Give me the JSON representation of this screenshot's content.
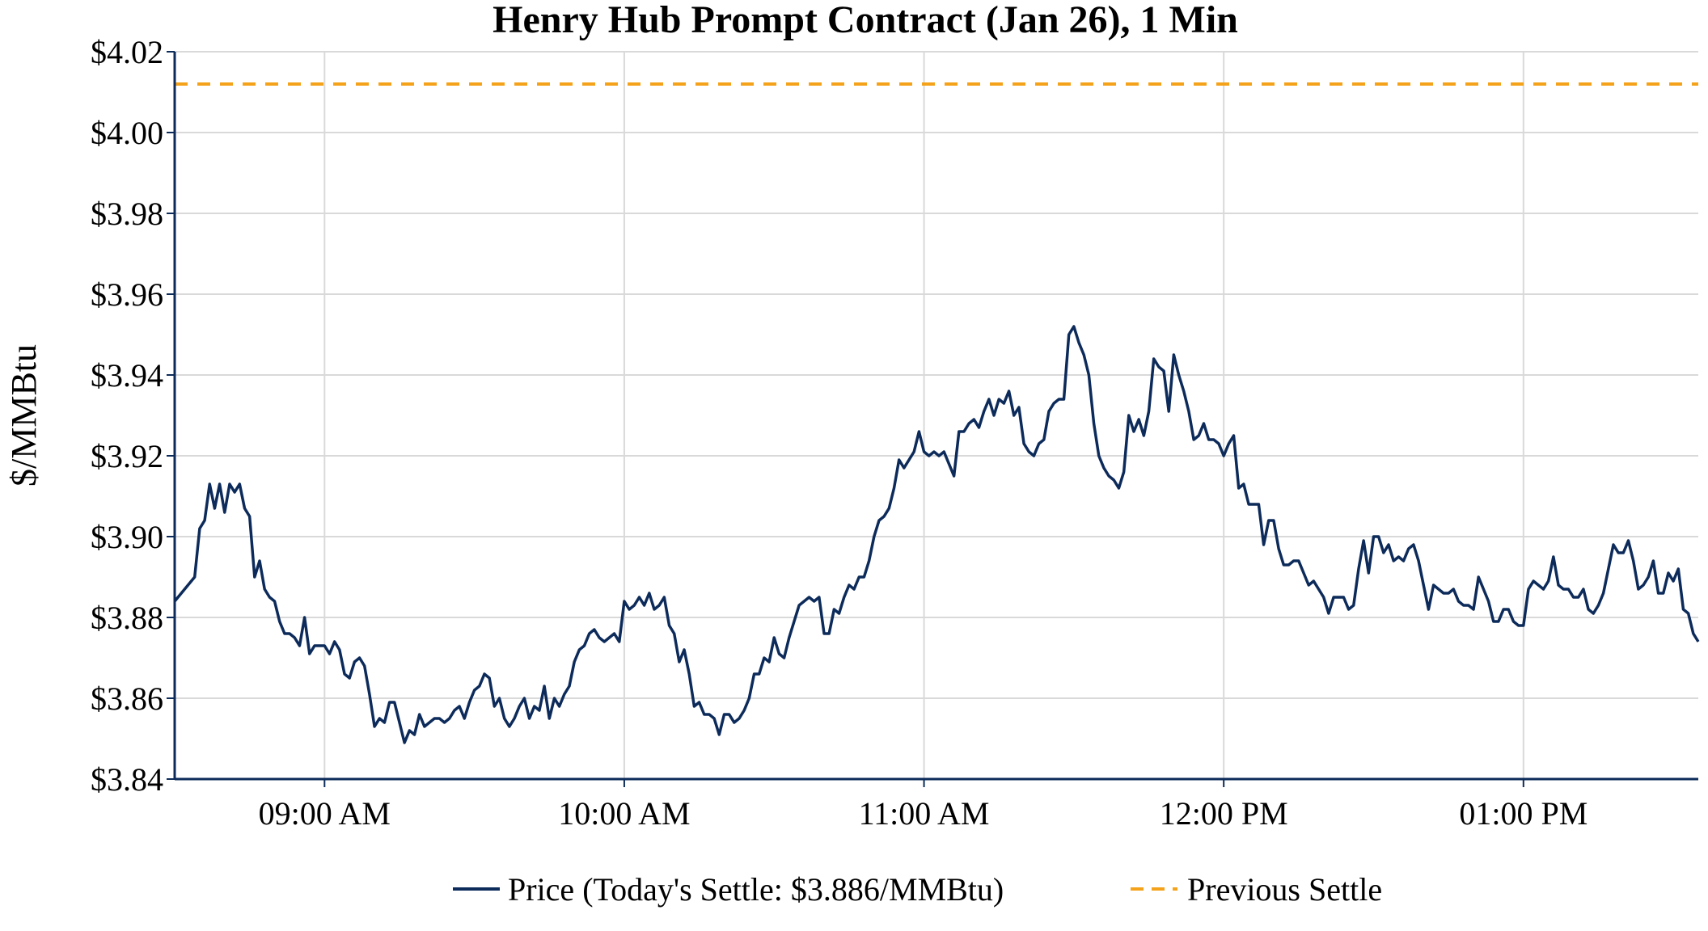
{
  "chart_data": {
    "type": "line",
    "title": "Henry Hub Prompt Contract (Jan 26), 1 Min",
    "ylabel": "$/MMBtu",
    "xlabel": "",
    "ylim": [
      3.84,
      4.02
    ],
    "y_ticks": [
      "$3.84",
      "$3.86",
      "$3.88",
      "$3.90",
      "$3.92",
      "$3.94",
      "$3.96",
      "$3.98",
      "$4.00",
      "$4.02"
    ],
    "y_tick_values": [
      3.84,
      3.86,
      3.88,
      3.9,
      3.92,
      3.94,
      3.96,
      3.98,
      4.0,
      4.02
    ],
    "x_range_minutes": [
      510,
      815
    ],
    "x_ticks": [
      "09:00 AM",
      "10:00 AM",
      "11:00 AM",
      "12:00 PM",
      "01:00 PM"
    ],
    "x_tick_minutes": [
      540,
      600,
      660,
      720,
      780
    ],
    "grid": true,
    "legend_position": "bottom",
    "colors": {
      "price": "#0d2b5a",
      "previous_settle": "#f5a21b",
      "grid": "#d9d9d9",
      "axis": "#0d2b5a"
    },
    "series": [
      {
        "name": "Price (Today's Settle: $3.886/MMBtu)",
        "style": "solid",
        "x": [
          510,
          512,
          514,
          515,
          516,
          517,
          518,
          519,
          520,
          521,
          522,
          523,
          524,
          525,
          526,
          527,
          528,
          529,
          530,
          531,
          532,
          533,
          534,
          535,
          536,
          537,
          538,
          540,
          541,
          542,
          543,
          544,
          545,
          546,
          547,
          548,
          549,
          550,
          551,
          552,
          553,
          554,
          555,
          556,
          557,
          558,
          559,
          560,
          561,
          562,
          563,
          564,
          565,
          566,
          567,
          568,
          569,
          570,
          571,
          572,
          573,
          574,
          575,
          576,
          577,
          578,
          579,
          580,
          581,
          582,
          583,
          584,
          585,
          586,
          587,
          588,
          589,
          590,
          591,
          592,
          593,
          594,
          595,
          596,
          597,
          598,
          599,
          600,
          601,
          602,
          603,
          604,
          605,
          606,
          607,
          608,
          609,
          610,
          611,
          612,
          613,
          614,
          615,
          616,
          617,
          618,
          619,
          620,
          621,
          622,
          623,
          624,
          625,
          626,
          627,
          628,
          629,
          630,
          631,
          632,
          633,
          634,
          635,
          636,
          637,
          638,
          639,
          640,
          641,
          642,
          643,
          644,
          645,
          646,
          647,
          648,
          649,
          650,
          651,
          652,
          653,
          654,
          655,
          656,
          657,
          658,
          659,
          660,
          661,
          662,
          663,
          664,
          665,
          666,
          667,
          668,
          669,
          670,
          671,
          672,
          673,
          674,
          675,
          676,
          677,
          678,
          679,
          680,
          681,
          682,
          683,
          684,
          685,
          686,
          687,
          688,
          689,
          690,
          691,
          692,
          693,
          694,
          695,
          696,
          697,
          698,
          699,
          700,
          701,
          702,
          703,
          704,
          705,
          706,
          707,
          708,
          709,
          710,
          711,
          712,
          713,
          714,
          715,
          716,
          717,
          718,
          719,
          720,
          721,
          722,
          723,
          724,
          725,
          726,
          727,
          728,
          729,
          730,
          731,
          732,
          733,
          734,
          735,
          736,
          737,
          738,
          739,
          740,
          741,
          742,
          743,
          744,
          745,
          746,
          747,
          748,
          749,
          750,
          751,
          752,
          753,
          754,
          755,
          756,
          757,
          758,
          759,
          760,
          761,
          762,
          763,
          764,
          765,
          766,
          767,
          768,
          769,
          770,
          771,
          772,
          773,
          774,
          775,
          776,
          777,
          778,
          779,
          780,
          781,
          782,
          783,
          784,
          785,
          786,
          787,
          788,
          789,
          790,
          791,
          792,
          793,
          794,
          795,
          796,
          797,
          798,
          799,
          800,
          801,
          802,
          803,
          804,
          805,
          806,
          807,
          808,
          809,
          810,
          811,
          812,
          813,
          814,
          815
        ],
        "values": [
          3.884,
          3.887,
          3.89,
          3.902,
          3.904,
          3.913,
          3.907,
          3.913,
          3.906,
          3.913,
          3.911,
          3.913,
          3.907,
          3.905,
          3.89,
          3.894,
          3.887,
          3.885,
          3.884,
          3.879,
          3.876,
          3.876,
          3.875,
          3.873,
          3.88,
          3.871,
          3.873,
          3.873,
          3.871,
          3.874,
          3.872,
          3.866,
          3.865,
          3.869,
          3.87,
          3.868,
          3.861,
          3.853,
          3.855,
          3.854,
          3.859,
          3.859,
          3.854,
          3.849,
          3.852,
          3.851,
          3.856,
          3.853,
          3.854,
          3.855,
          3.855,
          3.854,
          3.855,
          3.857,
          3.858,
          3.855,
          3.859,
          3.862,
          3.863,
          3.866,
          3.865,
          3.858,
          3.86,
          3.855,
          3.853,
          3.855,
          3.858,
          3.86,
          3.855,
          3.858,
          3.857,
          3.863,
          3.855,
          3.86,
          3.858,
          3.861,
          3.863,
          3.869,
          3.872,
          3.873,
          3.876,
          3.877,
          3.875,
          3.874,
          3.875,
          3.876,
          3.874,
          3.884,
          3.882,
          3.883,
          3.885,
          3.883,
          3.886,
          3.882,
          3.883,
          3.885,
          3.878,
          3.876,
          3.869,
          3.872,
          3.866,
          3.858,
          3.859,
          3.856,
          3.856,
          3.855,
          3.851,
          3.856,
          3.856,
          3.854,
          3.855,
          3.857,
          3.86,
          3.866,
          3.866,
          3.87,
          3.869,
          3.875,
          3.871,
          3.87,
          3.875,
          3.879,
          3.883,
          3.884,
          3.885,
          3.884,
          3.885,
          3.876,
          3.876,
          3.882,
          3.881,
          3.885,
          3.888,
          3.887,
          3.89,
          3.89,
          3.894,
          3.9,
          3.904,
          3.905,
          3.907,
          3.912,
          3.919,
          3.917,
          3.919,
          3.921,
          3.926,
          3.921,
          3.92,
          3.921,
          3.92,
          3.921,
          3.918,
          3.915,
          3.926,
          3.926,
          3.928,
          3.929,
          3.927,
          3.931,
          3.934,
          3.93,
          3.934,
          3.933,
          3.936,
          3.93,
          3.932,
          3.923,
          3.921,
          3.92,
          3.923,
          3.924,
          3.931,
          3.933,
          3.934,
          3.934,
          3.95,
          3.952,
          3.948,
          3.945,
          3.94,
          3.928,
          3.92,
          3.917,
          3.915,
          3.914,
          3.912,
          3.916,
          3.93,
          3.926,
          3.929,
          3.925,
          3.931,
          3.944,
          3.942,
          3.941,
          3.931,
          3.945,
          3.94,
          3.936,
          3.931,
          3.924,
          3.925,
          3.928,
          3.924,
          3.924,
          3.923,
          3.92,
          3.923,
          3.925,
          3.912,
          3.913,
          3.908,
          3.908,
          3.908,
          3.898,
          3.904,
          3.904,
          3.897,
          3.893,
          3.893,
          3.894,
          3.894,
          3.891,
          3.888,
          3.889,
          3.887,
          3.885,
          3.881,
          3.885,
          3.885,
          3.885,
          3.882,
          3.883,
          3.892,
          3.899,
          3.891,
          3.9,
          3.9,
          3.896,
          3.898,
          3.894,
          3.895,
          3.894,
          3.897,
          3.898,
          3.894,
          3.888,
          3.882,
          3.888,
          3.887,
          3.886,
          3.886,
          3.887,
          3.884,
          3.883,
          3.883,
          3.882,
          3.89,
          3.887,
          3.884,
          3.879,
          3.879,
          3.882,
          3.882,
          3.879,
          3.878,
          3.878,
          3.887,
          3.889,
          3.888,
          3.887,
          3.889,
          3.895,
          3.888,
          3.887,
          3.887,
          3.885,
          3.885,
          3.887,
          3.882,
          3.881,
          3.883,
          3.886,
          3.892,
          3.898,
          3.896,
          3.896,
          3.899,
          3.894,
          3.887,
          3.888,
          3.89,
          3.894,
          3.886,
          3.886,
          3.891,
          3.889,
          3.892,
          3.882,
          3.881,
          3.876,
          3.874
        ]
      },
      {
        "name": "Previous Settle",
        "style": "dashed",
        "values": [
          4.012
        ]
      }
    ]
  }
}
